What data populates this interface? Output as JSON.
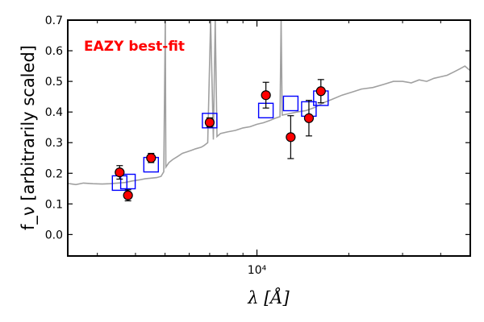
{
  "chart_data": {
    "type": "scatter",
    "title": "",
    "xlabel": "λ [Å]",
    "ylabel": "f_ν [arbitrarily scaled]",
    "xscale": "log",
    "xlim": [
      2400,
      50000
    ],
    "ylim": [
      -0.07,
      0.7
    ],
    "x_ticks": [
      {
        "value": 10000,
        "label": "10⁴"
      }
    ],
    "y_ticks": [
      {
        "value": 0.0,
        "label": "0.0"
      },
      {
        "value": 0.1,
        "label": "0.1"
      },
      {
        "value": 0.2,
        "label": "0.2"
      },
      {
        "value": 0.3,
        "label": "0.3"
      },
      {
        "value": 0.4,
        "label": "0.4"
      },
      {
        "value": 0.5,
        "label": "0.5"
      },
      {
        "value": 0.6,
        "label": "0.6"
      },
      {
        "value": 0.7,
        "label": "0.7"
      }
    ],
    "grid": false,
    "annotation": {
      "text": "EAZY best-fit",
      "color": "#ff0000",
      "placement": "top-left"
    },
    "colors": {
      "spectrum": "#a0a0a0",
      "observed": "#ff0000",
      "model": "#0000ff"
    },
    "series": [
      {
        "kind": "line",
        "points": [
          [
            2400,
            0.167
          ],
          [
            2550,
            0.163
          ],
          [
            2700,
            0.168
          ],
          [
            2900,
            0.166
          ],
          [
            3100,
            0.165
          ],
          [
            3300,
            0.166
          ],
          [
            3500,
            0.168
          ],
          [
            3700,
            0.17
          ],
          [
            3900,
            0.175
          ],
          [
            4100,
            0.178
          ],
          [
            4300,
            0.182
          ],
          [
            4500,
            0.184
          ],
          [
            4700,
            0.186
          ],
          [
            4850,
            0.19
          ],
          [
            4950,
            0.205
          ],
          [
            5008,
            0.7
          ],
          [
            5030,
            0.22
          ],
          [
            5150,
            0.235
          ],
          [
            5300,
            0.245
          ],
          [
            5500,
            0.255
          ],
          [
            5700,
            0.265
          ],
          [
            5900,
            0.27
          ],
          [
            6100,
            0.275
          ],
          [
            6300,
            0.28
          ],
          [
            6563,
            0.285
          ],
          [
            6700,
            0.29
          ],
          [
            6900,
            0.3
          ],
          [
            7050,
            0.7
          ],
          [
            7200,
            0.31
          ],
          [
            7300,
            0.7
          ],
          [
            7400,
            0.32
          ],
          [
            7600,
            0.33
          ],
          [
            8000,
            0.335
          ],
          [
            8500,
            0.34
          ],
          [
            9000,
            0.348
          ],
          [
            9500,
            0.352
          ],
          [
            10000,
            0.36
          ],
          [
            10500,
            0.365
          ],
          [
            11000,
            0.372
          ],
          [
            11500,
            0.38
          ],
          [
            11900,
            0.385
          ],
          [
            12000,
            0.7
          ],
          [
            12100,
            0.39
          ],
          [
            12800,
            0.395
          ],
          [
            13500,
            0.4
          ],
          [
            14500,
            0.405
          ],
          [
            15500,
            0.415
          ],
          [
            16500,
            0.43
          ],
          [
            17500,
            0.44
          ],
          [
            19000,
            0.455
          ],
          [
            20500,
            0.465
          ],
          [
            22000,
            0.475
          ],
          [
            24000,
            0.48
          ],
          [
            26000,
            0.49
          ],
          [
            28000,
            0.5
          ],
          [
            30000,
            0.5
          ],
          [
            32000,
            0.495
          ],
          [
            34000,
            0.505
          ],
          [
            36000,
            0.5
          ],
          [
            38000,
            0.51
          ],
          [
            40000,
            0.515
          ],
          [
            42000,
            0.52
          ],
          [
            44000,
            0.53
          ],
          [
            46000,
            0.54
          ],
          [
            48000,
            0.55
          ],
          [
            50000,
            0.535
          ]
        ]
      },
      {
        "kind": "model_squares",
        "points": [
          [
            3550,
            0.168
          ],
          [
            3780,
            0.173
          ],
          [
            4500,
            0.228
          ],
          [
            7000,
            0.372
          ],
          [
            10700,
            0.405
          ],
          [
            12900,
            0.428
          ],
          [
            14800,
            0.41
          ],
          [
            16200,
            0.445
          ]
        ]
      },
      {
        "kind": "observed_points",
        "points": [
          {
            "x": 3550,
            "y": 0.203,
            "err": 0.022
          },
          {
            "x": 3780,
            "y": 0.128,
            "err": 0.018
          },
          {
            "x": 4500,
            "y": 0.25,
            "err": 0.015
          },
          {
            "x": 7000,
            "y": 0.366,
            "err": 0.015
          },
          {
            "x": 10700,
            "y": 0.455,
            "err": 0.042
          },
          {
            "x": 12900,
            "y": 0.318,
            "err": 0.07
          },
          {
            "x": 14800,
            "y": 0.38,
            "err": 0.058
          },
          {
            "x": 16200,
            "y": 0.468,
            "err": 0.038
          }
        ]
      }
    ]
  }
}
